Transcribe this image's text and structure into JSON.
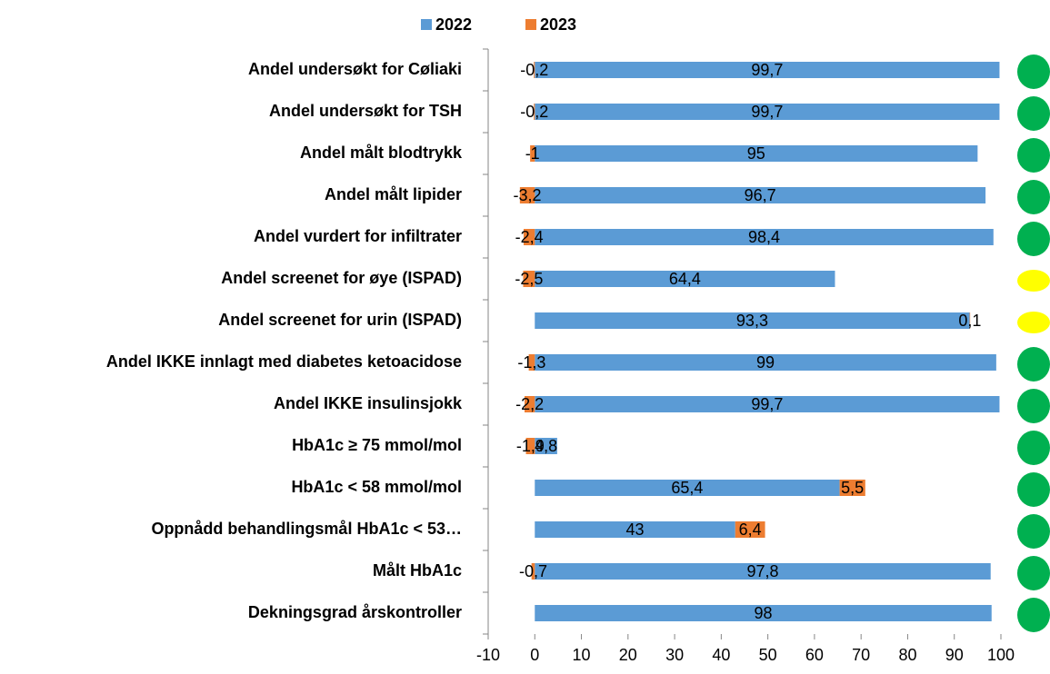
{
  "chart_data": {
    "type": "bar_stacked_horizontal",
    "categories": [
      "Andel undersøkt for Cøliaki",
      "Andel undersøkt for TSH",
      "Andel målt blodtrykk",
      "Andel målt lipider",
      "Andel vurdert for infiltrater",
      "Andel screenet for øye (ISPAD)",
      "Andel screenet for urin (ISPAD)",
      "Andel IKKE innlagt med diabetes ketoacidose",
      "Andel IKKE insulinsjokk",
      "HbA1c ≥ 75 mmol/mol",
      "HbA1c < 58 mmol/mol",
      "Oppnådd behandlingsmål HbA1c < 53…",
      "Målt HbA1c",
      "Dekningsgrad årskontroller"
    ],
    "series": [
      {
        "name": "2022",
        "color": "#5b9bd5",
        "values": [
          99.7,
          99.7,
          95,
          96.7,
          98.4,
          64.4,
          93.3,
          99,
          99.7,
          4.8,
          65.4,
          43,
          97.8,
          98
        ],
        "value_labels": [
          "99,7",
          "99,7",
          "95",
          "96,7",
          "98,4",
          "64,4",
          "93,3",
          "99",
          "99,7",
          "4,8",
          "65,4",
          "43",
          "97,8",
          "98"
        ]
      },
      {
        "name": "2023",
        "color": "#ed7d31",
        "values": [
          -0.2,
          -0.2,
          -1,
          -3.2,
          -2.4,
          -2.5,
          0.1,
          -1.3,
          -2.2,
          -1.9,
          5.5,
          6.4,
          -0.7,
          null
        ],
        "value_labels": [
          "-0,2",
          "-0,2",
          "-1",
          "-3,2",
          "-2,4",
          "-2,5",
          "0,1",
          "-1,3",
          "-2,2",
          "-1,9",
          "5,5",
          "6,4",
          "-0,7",
          null
        ]
      }
    ],
    "status_colors": [
      "#00b050",
      "#00b050",
      "#00b050",
      "#00b050",
      "#00b050",
      "#ffff00",
      "#ffff00",
      "#00b050",
      "#00b050",
      "#00b050",
      "#00b050",
      "#00b050",
      "#00b050",
      "#00b050"
    ],
    "xlim": [
      -10,
      100
    ],
    "xticks": [
      -10,
      0,
      10,
      20,
      30,
      40,
      50,
      60,
      70,
      80,
      90,
      100
    ]
  }
}
